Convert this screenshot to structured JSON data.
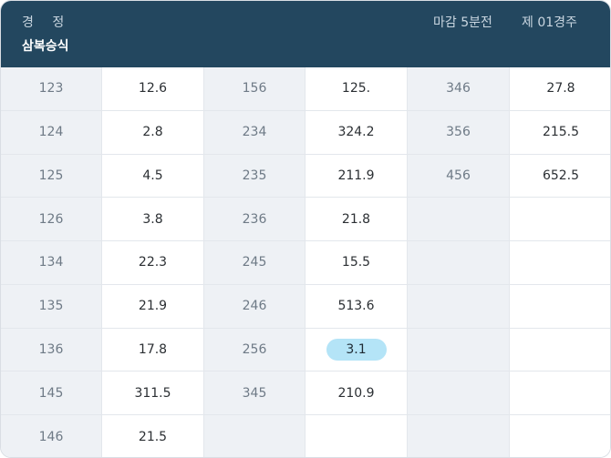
{
  "header": {
    "title": "경 정",
    "subtitle": "삼복승식",
    "deadline": "마감 5분전",
    "race": "제 01경주"
  },
  "rows": [
    [
      {
        "combo": "123",
        "odds": "12.6"
      },
      {
        "combo": "156",
        "odds": "125."
      },
      {
        "combo": "346",
        "odds": "27.8"
      }
    ],
    [
      {
        "combo": "124",
        "odds": "2.8"
      },
      {
        "combo": "234",
        "odds": "324.2"
      },
      {
        "combo": "356",
        "odds": "215.5"
      }
    ],
    [
      {
        "combo": "125",
        "odds": "4.5"
      },
      {
        "combo": "235",
        "odds": "211.9"
      },
      {
        "combo": "456",
        "odds": "652.5"
      }
    ],
    [
      {
        "combo": "126",
        "odds": "3.8"
      },
      {
        "combo": "236",
        "odds": "21.8"
      },
      {
        "combo": "",
        "odds": ""
      }
    ],
    [
      {
        "combo": "134",
        "odds": "22.3"
      },
      {
        "combo": "245",
        "odds": "15.5"
      },
      {
        "combo": "",
        "odds": ""
      }
    ],
    [
      {
        "combo": "135",
        "odds": "21.9"
      },
      {
        "combo": "246",
        "odds": "513.6"
      },
      {
        "combo": "",
        "odds": ""
      }
    ],
    [
      {
        "combo": "136",
        "odds": "17.8"
      },
      {
        "combo": "256",
        "odds": "3.1",
        "highlight": true
      },
      {
        "combo": "",
        "odds": ""
      }
    ],
    [
      {
        "combo": "145",
        "odds": "311.5"
      },
      {
        "combo": "345",
        "odds": "210.9"
      },
      {
        "combo": "",
        "odds": ""
      }
    ],
    [
      {
        "combo": "146",
        "odds": "21.5"
      },
      {
        "combo": "",
        "odds": ""
      },
      {
        "combo": "",
        "odds": ""
      }
    ]
  ],
  "colors": {
    "header_bg": "#23475f",
    "combo_bg": "#eef1f5",
    "highlight_bg": "#b4e4f7"
  }
}
